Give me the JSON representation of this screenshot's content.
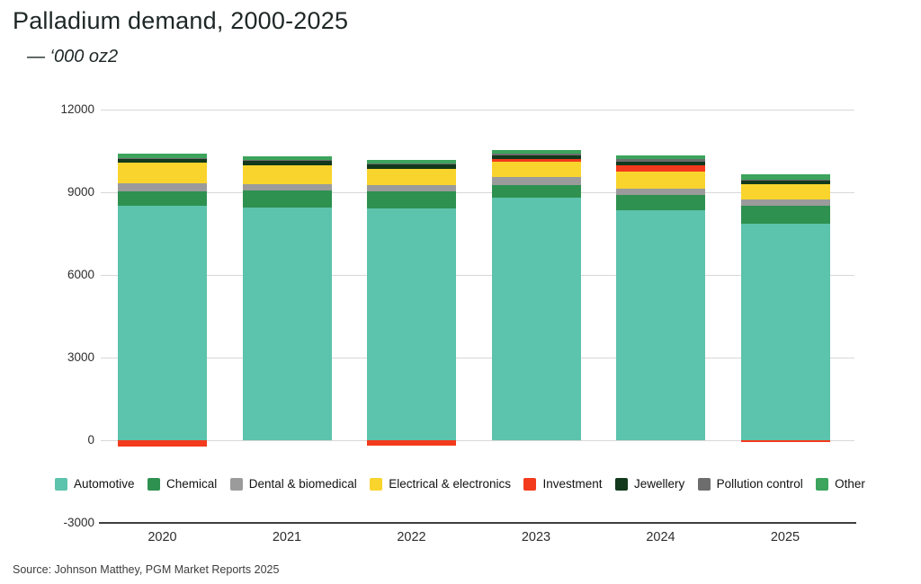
{
  "header": {
    "title": "Palladium demand, 2000-2025",
    "subtitle": "— ‘000 oz2"
  },
  "chart_data": {
    "type": "bar",
    "stacked": true,
    "title": "Palladium demand, 2000-2025",
    "unit_label": "'000 oz",
    "categories": [
      "2020",
      "2021",
      "2022",
      "2023",
      "2024",
      "2025"
    ],
    "series": [
      {
        "name": "Automotive",
        "color": "#5cc3ac",
        "values": [
          8520,
          8460,
          8400,
          8790,
          8355,
          7865
        ]
      },
      {
        "name": "Chemical",
        "color": "#2e9150",
        "values": [
          520,
          600,
          620,
          460,
          545,
          650
        ]
      },
      {
        "name": "Dental & biomedical",
        "color": "#9b9b9b",
        "values": [
          290,
          220,
          250,
          320,
          240,
          220
        ]
      },
      {
        "name": "Electrical & electronics",
        "color": "#f9d42d",
        "values": [
          730,
          710,
          580,
          545,
          610,
          545
        ]
      },
      {
        "name": "Investment",
        "color": "#f43a1c",
        "values": [
          -235,
          0,
          -200,
          100,
          220,
          -60
        ]
      },
      {
        "name": "Jewellery",
        "color": "#12391c",
        "values": [
          160,
          160,
          150,
          110,
          130,
          160
        ]
      },
      {
        "name": "Pollution control",
        "color": "#6d6d6d",
        "values": [
          30,
          30,
          30,
          80,
          110,
          30
        ]
      },
      {
        "name": "Other",
        "color": "#3ca45c",
        "values": [
          140,
          130,
          145,
          140,
          130,
          195
        ]
      }
    ],
    "ylim": [
      -3000,
      12000
    ],
    "yticks": [
      -3000,
      0,
      3000,
      6000,
      9000,
      12000
    ],
    "grid": "horizontal",
    "legend_position": "bottom"
  },
  "footer": {
    "source": "Source: Johnson Matthey, PGM Market Reports 2025"
  }
}
